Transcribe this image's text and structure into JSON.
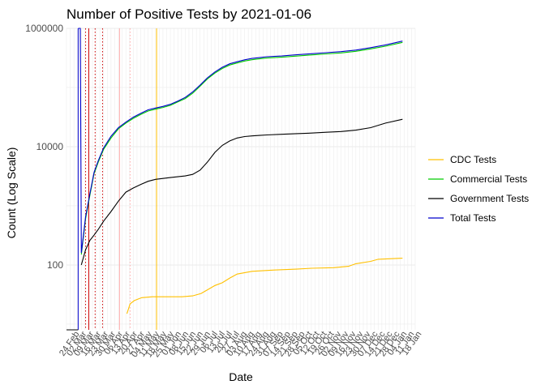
{
  "chart_data": {
    "type": "line",
    "title": "Number of Positive Tests by  2021-01-06",
    "xlabel": "Date",
    "ylabel": "Count (Log Scale)",
    "y_scale": "log10",
    "yticks": [
      100,
      10000,
      1000000
    ],
    "ytick_labels": [
      "100",
      "10000",
      "1000000"
    ],
    "ylim": [
      8,
      1000000
    ],
    "x_range": [
      "2020-02-24",
      "2021-01-18"
    ],
    "xtick_labels": [
      "24 Feb",
      "02 Mar",
      "09 Mar",
      "16 Mar",
      "23 Mar",
      "30 Mar",
      "06 Apr",
      "13 Apr",
      "20 Apr",
      "27 Apr",
      "04 May",
      "11 May",
      "18 May",
      "25 May",
      "01 Jun",
      "08 Jun",
      "15 Jun",
      "22 Jun",
      "29 Jun",
      "06 Jul",
      "13 Jul",
      "20 Jul",
      "27 Jul",
      "03 Aug",
      "10 Aug",
      "17 Aug",
      "24 Aug",
      "31 Aug",
      "07 Sep",
      "14 Sep",
      "21 Sep",
      "28 Sep",
      "05 Oct",
      "12 Oct",
      "19 Oct",
      "26 Oct",
      "02 Nov",
      "09 Nov",
      "16 Nov",
      "23 Nov",
      "30 Nov",
      "07 Dec",
      "14 Dec",
      "21 Dec",
      "28 Dec",
      "04 Jan",
      "11 Jan",
      "18 Jan"
    ],
    "grid": true,
    "legend_position": "right",
    "series": [
      {
        "name": "CDC Tests",
        "color": "#ffc000",
        "x": [
          "2020-04-21",
          "2020-04-24",
          "2020-04-28",
          "2020-05-05",
          "2020-05-15",
          "2020-05-29",
          "2020-06-12",
          "2020-06-22",
          "2020-06-30",
          "2020-07-06",
          "2020-07-13",
          "2020-07-20",
          "2020-07-27",
          "2020-08-03",
          "2020-08-17",
          "2020-09-07",
          "2020-09-28",
          "2020-10-12",
          "2020-11-02",
          "2020-11-16",
          "2020-11-23",
          "2020-12-07",
          "2020-12-14",
          "2021-01-06"
        ],
        "y": [
          15,
          22,
          25,
          28,
          29,
          29,
          29,
          30,
          33,
          38,
          45,
          50,
          60,
          70,
          78,
          82,
          85,
          88,
          90,
          95,
          105,
          115,
          125,
          130
        ]
      },
      {
        "name": "Commercial Tests",
        "color": "#00cc00",
        "x": [
          "2020-03-09",
          "2020-03-13",
          "2020-03-17",
          "2020-03-21",
          "2020-03-25",
          "2020-03-30",
          "2020-04-06",
          "2020-04-13",
          "2020-04-20",
          "2020-04-27",
          "2020-05-04",
          "2020-05-11",
          "2020-05-18",
          "2020-05-25",
          "2020-06-01",
          "2020-06-08",
          "2020-06-15",
          "2020-06-22",
          "2020-06-29",
          "2020-07-06",
          "2020-07-13",
          "2020-07-20",
          "2020-07-27",
          "2020-08-03",
          "2020-08-10",
          "2020-08-17",
          "2020-08-24",
          "2020-08-31",
          "2020-09-14",
          "2020-09-28",
          "2020-10-12",
          "2020-10-26",
          "2020-11-09",
          "2020-11-23",
          "2020-12-07",
          "2020-12-21",
          "2021-01-06"
        ],
        "y": [
          150,
          600,
          1500,
          3500,
          5500,
          9000,
          14000,
          20000,
          25000,
          30000,
          35000,
          40000,
          43000,
          46000,
          50000,
          57000,
          65000,
          80000,
          105000,
          140000,
          175000,
          210000,
          240000,
          260000,
          280000,
          295000,
          305000,
          315000,
          325000,
          340000,
          355000,
          370000,
          385000,
          410000,
          450000,
          500000,
          580000
        ]
      },
      {
        "name": "Government Tests",
        "color": "#000000",
        "x": [
          "2020-03-09",
          "2020-03-13",
          "2020-03-17",
          "2020-03-21",
          "2020-03-25",
          "2020-03-30",
          "2020-04-06",
          "2020-04-13",
          "2020-04-20",
          "2020-04-27",
          "2020-05-04",
          "2020-05-11",
          "2020-05-18",
          "2020-05-25",
          "2020-06-01",
          "2020-06-08",
          "2020-06-15",
          "2020-06-22",
          "2020-06-29",
          "2020-07-06",
          "2020-07-13",
          "2020-07-20",
          "2020-07-27",
          "2020-08-03",
          "2020-08-10",
          "2020-08-17",
          "2020-08-24",
          "2020-08-31",
          "2020-09-14",
          "2020-09-28",
          "2020-10-12",
          "2020-10-26",
          "2020-11-09",
          "2020-11-23",
          "2020-12-07",
          "2020-12-21",
          "2021-01-06"
        ],
        "y": [
          100,
          180,
          260,
          320,
          400,
          550,
          800,
          1200,
          1700,
          2000,
          2300,
          2600,
          2800,
          2900,
          3000,
          3100,
          3200,
          3400,
          4000,
          5500,
          8000,
          10500,
          12500,
          14000,
          14800,
          15200,
          15500,
          15800,
          16200,
          16600,
          17000,
          17500,
          18000,
          19000,
          21000,
          25000,
          29000
        ]
      },
      {
        "name": "Total Tests",
        "color": "#0000cc",
        "x": [
          "2020-03-06",
          "2020-03-08",
          "2020-03-09",
          "2020-03-13",
          "2020-03-17",
          "2020-03-21",
          "2020-03-25",
          "2020-03-30",
          "2020-04-06",
          "2020-04-13",
          "2020-04-20",
          "2020-04-27",
          "2020-05-04",
          "2020-05-11",
          "2020-05-18",
          "2020-05-25",
          "2020-06-01",
          "2020-06-08",
          "2020-06-15",
          "2020-06-22",
          "2020-06-29",
          "2020-07-06",
          "2020-07-13",
          "2020-07-20",
          "2020-07-27",
          "2020-08-03",
          "2020-08-10",
          "2020-08-17",
          "2020-08-24",
          "2020-08-31",
          "2020-09-14",
          "2020-09-28",
          "2020-10-12",
          "2020-10-26",
          "2020-11-09",
          "2020-11-23",
          "2020-12-07",
          "2020-12-21",
          "2021-01-06"
        ],
        "y": [
          1000000,
          1000000,
          160,
          650,
          1600,
          3700,
          5800,
          9500,
          15000,
          21000,
          26000,
          31500,
          36500,
          42000,
          45000,
          48000,
          52000,
          59000,
          68000,
          84000,
          110000,
          146000,
          183000,
          220000,
          252000,
          273000,
          294000,
          310000,
          320000,
          331000,
          341000,
          357000,
          372000,
          388000,
          404000,
          430000,
          472000,
          525000,
          610000
        ]
      }
    ],
    "vlines": [
      {
        "date": "2020-03-06",
        "color": "#0000cc",
        "style": "solid"
      },
      {
        "date": "2020-03-13",
        "color": "#cc0000",
        "style": "dotted"
      },
      {
        "date": "2020-03-16",
        "color": "#cc0000",
        "style": "solid"
      },
      {
        "date": "2020-03-22",
        "color": "#cc0000",
        "style": "dotted"
      },
      {
        "date": "2020-03-29",
        "color": "#cc0000",
        "style": "dotted"
      },
      {
        "date": "2020-04-14",
        "color": "#ffaaaa",
        "style": "solid"
      },
      {
        "date": "2020-04-24",
        "color": "#ffaaaa",
        "style": "dotted"
      },
      {
        "date": "2020-05-19",
        "color": "#ffc000",
        "style": "solid"
      }
    ],
    "baseline_segment": {
      "from": "2020-02-24",
      "to": "2020-03-06",
      "value": 8,
      "color": "#000000"
    }
  }
}
